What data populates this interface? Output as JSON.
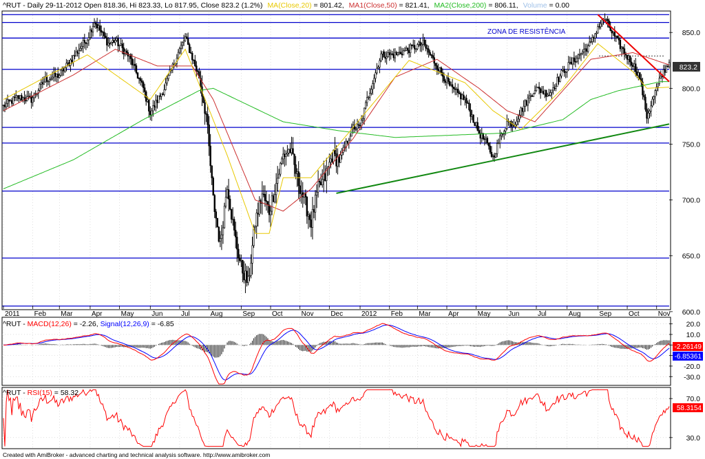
{
  "colors": {
    "price": "#000000",
    "ma20": "#e8c800",
    "ma50": "#cc3030",
    "ma200": "#22bb22",
    "volume": "#9fc0e8",
    "hline": "#0000cc",
    "trend_up": "#118811",
    "trend_down": "#ee0000",
    "macd": "#0000ff",
    "signal": "#ff0000",
    "hist": "#000000",
    "rsi": "#ff0000",
    "last_price_bg": "#333333",
    "macd_tag_bg": "#ff0000",
    "signal_tag_bg": "#0000ff",
    "rsi_tag_bg": "#ff0000"
  },
  "price_panel": {
    "header": {
      "symbol_line": "^RUT - Daily 29-11-2012 Open 818.36, Hi 823.33, Lo 817.95, Close 823.2 (1.2%)",
      "ma20": "MA(Close,20)",
      "ma20_value": " = 801.42,",
      "ma50": "MA1(Close,50)",
      "ma50_value": " = 821.41,",
      "ma200": "MA2(Close,200)",
      "ma200_value": " = 806.11,",
      "volume": "Volume",
      "volume_value": " = 0.00"
    },
    "annotation": "ZONA DE RESISTÊNCIA",
    "last_price": "823.2",
    "y_ticks": [
      "850.0",
      "800.0",
      "750.0",
      "700.0",
      "650.0",
      "600.0"
    ],
    "y_tick_values": [
      850,
      800,
      750,
      700,
      650,
      600
    ],
    "ylim": [
      603,
      868
    ],
    "horizontal_levels": [
      866,
      859,
      845,
      817,
      765,
      751,
      708,
      648,
      605
    ],
    "resistance_dotted": 829
  },
  "x_axis": {
    "labels": [
      "2011",
      "Feb",
      "Mar",
      "Apr",
      "May",
      "Jun",
      "Jul",
      "Aug",
      "Sep",
      "Oct",
      "Nov",
      "Dec",
      "2012",
      "Feb",
      "Mar",
      "Apr",
      "May",
      "Jun",
      "Jul",
      "Aug",
      "Sep",
      "Oct",
      "Nov"
    ],
    "positions": [
      0,
      21,
      40,
      62,
      83,
      105,
      126,
      147,
      170,
      191,
      212,
      233,
      255,
      276,
      296,
      317,
      338,
      360,
      381,
      403,
      425,
      446,
      467
    ]
  },
  "macd_panel": {
    "header": {
      "symbol": "^RUT - ",
      "macd": "MACD(12,26)",
      "macd_value": " = -2.26, ",
      "signal": "Signal(12,26,9)",
      "signal_value": " = -6.85"
    },
    "y_ticks": [
      "20.0",
      "10.0",
      "0.0",
      "-10.0",
      "-20.0",
      "-30.0"
    ],
    "y_tick_values": [
      20,
      10,
      0,
      -10,
      -20,
      -30
    ],
    "ylim": [
      -37,
      25
    ],
    "macd_last": "-2.26149",
    "signal_last": "-6.85361"
  },
  "rsi_panel": {
    "header": {
      "symbol": "^RUT - ",
      "rsi": "RSI(15)",
      "rsi_value": " = 58.32"
    },
    "y_ticks": [
      "70.0",
      "30.0"
    ],
    "y_tick_values": [
      70,
      30
    ],
    "ylim": [
      20,
      80
    ],
    "rsi_last": "58.3154"
  },
  "footer": "Created with AmiBroker - advanced charting and technical analysis software. http://www.amibroker.com",
  "chart_data": {
    "type": "candlestick",
    "title": "^RUT - Daily 29-11-2012",
    "start_date": "2011-01-03",
    "end_date": "2012-11-29",
    "price_anchors": {
      "x": [
        0,
        10,
        20,
        30,
        40,
        50,
        60,
        65,
        75,
        80,
        90,
        100,
        105,
        115,
        125,
        130,
        140,
        145,
        150,
        155,
        160,
        165,
        170,
        175,
        180,
        185,
        190,
        200,
        205,
        210,
        215,
        220,
        225,
        230,
        235,
        240,
        245,
        250,
        255,
        260,
        270,
        280,
        290,
        300,
        310,
        320,
        330,
        340,
        345,
        350,
        355,
        360,
        365,
        370,
        380,
        390,
        400,
        410,
        420,
        425,
        430,
        435,
        440,
        445,
        450,
        455,
        460,
        463,
        467,
        472,
        476
      ],
      "close": [
        784,
        792,
        790,
        808,
        812,
        828,
        845,
        860,
        840,
        843,
        828,
        800,
        778,
        800,
        832,
        845,
        810,
        776,
        700,
        660,
        715,
        670,
        640,
        625,
        680,
        705,
        690,
        740,
        745,
        720,
        700,
        680,
        710,
        720,
        740,
        735,
        750,
        765,
        765,
        790,
        830,
        830,
        835,
        840,
        820,
        800,
        790,
        760,
        752,
        738,
        755,
        770,
        768,
        780,
        800,
        795,
        815,
        828,
        840,
        855,
        862,
        850,
        840,
        830,
        822,
        810,
        775,
        785,
        800,
        815,
        823
      ]
    },
    "ma20_anchors": {
      "x": [
        0,
        60,
        105,
        130,
        160,
        180,
        190,
        200,
        220,
        250,
        290,
        330,
        350,
        370,
        400,
        425,
        450,
        460,
        476
      ],
      "y": [
        790,
        830,
        790,
        835,
        740,
        670,
        670,
        720,
        720,
        765,
        825,
        805,
        780,
        763,
        800,
        840,
        815,
        800,
        801
      ]
    },
    "ma50_anchors": {
      "x": [
        0,
        50,
        80,
        110,
        135,
        150,
        180,
        200,
        220,
        250,
        280,
        310,
        340,
        360,
        380,
        420,
        450,
        476
      ],
      "y": [
        780,
        812,
        835,
        820,
        820,
        790,
        700,
        690,
        710,
        755,
        810,
        826,
        800,
        780,
        770,
        826,
        832,
        821
      ]
    },
    "ma200_anchors": {
      "x": [
        0,
        50,
        100,
        140,
        150,
        200,
        240,
        280,
        320,
        360,
        400,
        420,
        440,
        470,
        476
      ],
      "y": [
        710,
        736,
        772,
        798,
        800,
        770,
        762,
        756,
        758,
        760,
        772,
        790,
        798,
        806,
        806
      ]
    },
    "trendlines": [
      {
        "name": "support",
        "x": [
          238,
          476
        ],
        "y": [
          706,
          768
        ]
      },
      {
        "name": "resistance",
        "x": [
          425,
          476
        ],
        "y": [
          866,
          806
        ]
      }
    ],
    "series": [
      {
        "name": "MA(Close,20)",
        "last": 801.42
      },
      {
        "name": "MA1(Close,50)",
        "last": 821.41
      },
      {
        "name": "MA2(Close,200)",
        "last": 806.11
      },
      {
        "name": "MACD(12,26)",
        "last": -2.26
      },
      {
        "name": "Signal(12,26,9)",
        "last": -6.85
      },
      {
        "name": "RSI(15)",
        "last": 58.32
      }
    ]
  }
}
